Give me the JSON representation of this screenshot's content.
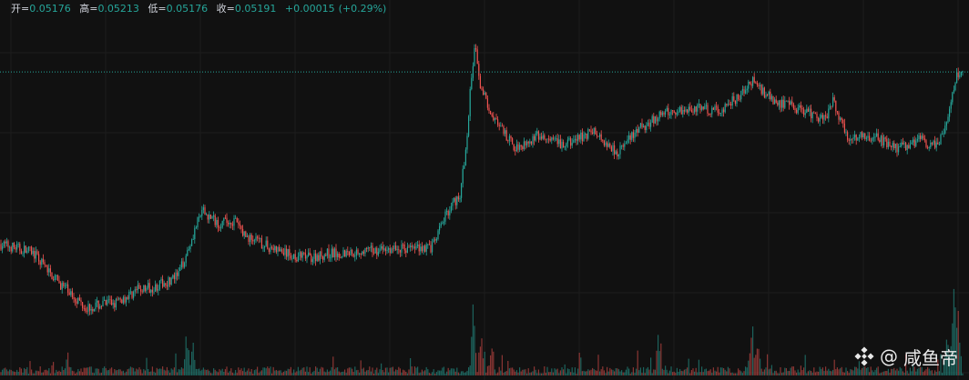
{
  "legend": {
    "open_label": "开=",
    "open": "0.05176",
    "high_label": "高=",
    "high": "0.05213",
    "low_label": "低=",
    "low": "0.05176",
    "close_label": "收=",
    "close": "0.05191",
    "change": "+0.00015",
    "change_pct": "(+0.29%)"
  },
  "watermark": {
    "at": "@",
    "name": "咸鱼帝",
    "icon": "binance-diamond-icon"
  },
  "colors": {
    "background": "#111111",
    "grid": "#1d1d1d",
    "up": "#26a69a",
    "down": "#ef5350",
    "price_line": "#26a69a"
  },
  "chart_data": {
    "type": "candlestick",
    "title": "",
    "xlabel": "",
    "ylabel": "",
    "grid": true,
    "ylim": [
      0.0225,
      0.0575
    ],
    "last_price": 0.05191,
    "path": [
      [
        0,
        0.034
      ],
      [
        35,
        0.0332
      ],
      [
        62,
        0.0302
      ],
      [
        95,
        0.0274
      ],
      [
        130,
        0.028
      ],
      [
        150,
        0.0292
      ],
      [
        172,
        0.0296
      ],
      [
        195,
        0.0306
      ],
      [
        207,
        0.0336
      ],
      [
        215,
        0.0358
      ],
      [
        222,
        0.0374
      ],
      [
        240,
        0.0362
      ],
      [
        258,
        0.0364
      ],
      [
        270,
        0.0348
      ],
      [
        300,
        0.0335
      ],
      [
        320,
        0.0328
      ],
      [
        340,
        0.0326
      ],
      [
        360,
        0.033
      ],
      [
        390,
        0.0332
      ],
      [
        420,
        0.0334
      ],
      [
        450,
        0.0336
      ],
      [
        475,
        0.0337
      ],
      [
        490,
        0.0372
      ],
      [
        505,
        0.0392
      ],
      [
        512,
        0.044
      ],
      [
        518,
        0.052
      ],
      [
        522,
        0.0548
      ],
      [
        528,
        0.0502
      ],
      [
        545,
        0.0466
      ],
      [
        565,
        0.044
      ],
      [
        590,
        0.0452
      ],
      [
        620,
        0.0442
      ],
      [
        650,
        0.0458
      ],
      [
        678,
        0.0436
      ],
      [
        705,
        0.0462
      ],
      [
        730,
        0.0476
      ],
      [
        760,
        0.0482
      ],
      [
        790,
        0.0478
      ],
      [
        815,
        0.0496
      ],
      [
        826,
        0.051
      ],
      [
        850,
        0.0488
      ],
      [
        880,
        0.048
      ],
      [
        905,
        0.047
      ],
      [
        915,
        0.0489
      ],
      [
        930,
        0.0452
      ],
      [
        960,
        0.0452
      ],
      [
        985,
        0.044
      ],
      [
        1010,
        0.0448
      ],
      [
        1030,
        0.0442
      ],
      [
        1040,
        0.0466
      ],
      [
        1050,
        0.0515
      ],
      [
        1056,
        0.0519
      ]
    ],
    "volume_spikes": [
      [
        205,
        55
      ],
      [
        212,
        40
      ],
      [
        520,
        95
      ],
      [
        528,
        50
      ],
      [
        540,
        35
      ],
      [
        723,
        55
      ],
      [
        826,
        55
      ],
      [
        832,
        40
      ],
      [
        1048,
        108
      ],
      [
        1052,
        85
      ],
      [
        1040,
        45
      ]
    ]
  }
}
